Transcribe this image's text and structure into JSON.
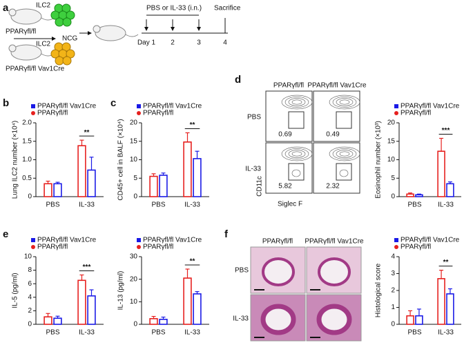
{
  "figure": {
    "panel_labels": [
      "a",
      "b",
      "c",
      "d",
      "e",
      "f"
    ],
    "schematic": {
      "donor_cells": "ILC2",
      "donor_1": "PPARγfl/fl",
      "recipient": "NCG",
      "donor_cells_2": "ILC2",
      "donor_2": "PPARγfl/fl Vav1Cre",
      "treatment": "PBS or IL-33 (i.n.)",
      "endpoint": "Sacrifice",
      "days": [
        "Day 1",
        "2",
        "3",
        "4"
      ]
    },
    "flow": {
      "columns": [
        "PPARγfl/fl",
        "PPARγfl/fl Vav1Cre"
      ],
      "rows": [
        "PBS",
        "IL-33"
      ],
      "gate_values": [
        [
          0.69,
          0.49
        ],
        [
          5.82,
          2.32
        ]
      ],
      "y_axis": "CD11c",
      "x_axis": "Siglec F"
    },
    "histology": {
      "columns": [
        "PPARγfl/fl",
        "PPARγfl/fl Vav1Cre"
      ],
      "rows": [
        "PBS",
        "IL-33"
      ]
    }
  },
  "chart_data": [
    {
      "type": "bar",
      "ylabel": "Lung ILC2 number (×10⁴)",
      "categories": [
        "PBS",
        "IL-33"
      ],
      "series": [
        {
          "name": "PPARγfl/fl Vav1Cre",
          "color": "#1a1ae6",
          "values": [
            0.35,
            0.72
          ],
          "errors": [
            0.04,
            0.35
          ]
        },
        {
          "name": "PPARγfl/fl",
          "color": "#e6201e",
          "values": [
            0.35,
            1.38
          ],
          "errors": [
            0.07,
            0.15
          ]
        }
      ],
      "ylim": [
        0,
        2
      ],
      "yticks": [
        0,
        0.5,
        {
          "value": 1,
          "label": "1.0"
        },
        1.5,
        {
          "value": 2,
          "label": "2.0"
        }
      ],
      "annotation": "**"
    },
    {
      "type": "bar",
      "ylabel": "CD45+ cell in BALF (×10⁴)",
      "categories": [
        "PBS",
        "IL-33"
      ],
      "series": [
        {
          "name": "PPARγfl/fl Vav1Cre",
          "color": "#1a1ae6",
          "values": [
            5.8,
            10.3
          ],
          "errors": [
            0.6,
            2
          ]
        },
        {
          "name": "PPARγfl/fl",
          "color": "#e6201e",
          "values": [
            5.5,
            14.8
          ],
          "errors": [
            0.7,
            2.5
          ]
        }
      ],
      "ylim": [
        0,
        20
      ],
      "yticks": [
        0,
        5,
        10,
        15,
        20
      ],
      "annotation": "**"
    },
    {
      "type": "bar",
      "ylabel": "Eosinophil number (×10³)",
      "categories": [
        "PBS",
        "IL-33"
      ],
      "series": [
        {
          "name": "PPARγfl/fl Vav1Cre",
          "color": "#1a1ae6",
          "values": [
            0.5,
            3.5
          ],
          "errors": [
            0.2,
            0.5
          ]
        },
        {
          "name": "PPARγfl/fl",
          "color": "#e6201e",
          "values": [
            0.7,
            12.3
          ],
          "errors": [
            0.3,
            3.5
          ]
        }
      ],
      "ylim": [
        0,
        20
      ],
      "yticks": [
        0,
        5,
        10,
        15,
        20
      ],
      "annotation": "***"
    },
    {
      "type": "bar",
      "ylabel": "IL-5 (pg/ml)",
      "categories": [
        "PBS",
        "IL-33"
      ],
      "series": [
        {
          "name": "PPARγfl/fl Vav1Cre",
          "color": "#1a1ae6",
          "values": [
            0.9,
            4.2
          ],
          "errors": [
            0.3,
            0.9
          ]
        },
        {
          "name": "PPARγfl/fl",
          "color": "#e6201e",
          "values": [
            1.1,
            6.5
          ],
          "errors": [
            0.5,
            0.8
          ]
        }
      ],
      "ylim": [
        0,
        10
      ],
      "yticks": [
        0,
        2,
        4,
        6,
        8,
        10
      ],
      "annotation": "***"
    },
    {
      "type": "bar",
      "ylabel": "IL-13 (pg/ml)",
      "categories": [
        "PBS",
        "IL-33"
      ],
      "series": [
        {
          "name": "PPARγfl/fl Vav1Cre",
          "color": "#1a1ae6",
          "values": [
            2.2,
            13.5
          ],
          "errors": [
            1,
            1
          ]
        },
        {
          "name": "PPARγfl/fl",
          "color": "#e6201e",
          "values": [
            2.5,
            20.5
          ],
          "errors": [
            1,
            4
          ]
        }
      ],
      "ylim": [
        0,
        30
      ],
      "yticks": [
        0,
        10,
        20,
        30
      ],
      "annotation": "**"
    },
    {
      "type": "bar",
      "ylabel": "Histological score",
      "categories": [
        "PBS",
        "IL-33"
      ],
      "series": [
        {
          "name": "PPARγfl/fl Vav1Cre",
          "color": "#1a1ae6",
          "values": [
            0.5,
            1.8
          ],
          "errors": [
            0.4,
            0.3
          ]
        },
        {
          "name": "PPARγfl/fl",
          "color": "#e6201e",
          "values": [
            0.5,
            2.7
          ],
          "errors": [
            0.3,
            0.5
          ]
        }
      ],
      "ylim": [
        0,
        4
      ],
      "yticks": [
        0,
        1,
        2,
        3,
        4
      ],
      "annotation": "**"
    }
  ]
}
